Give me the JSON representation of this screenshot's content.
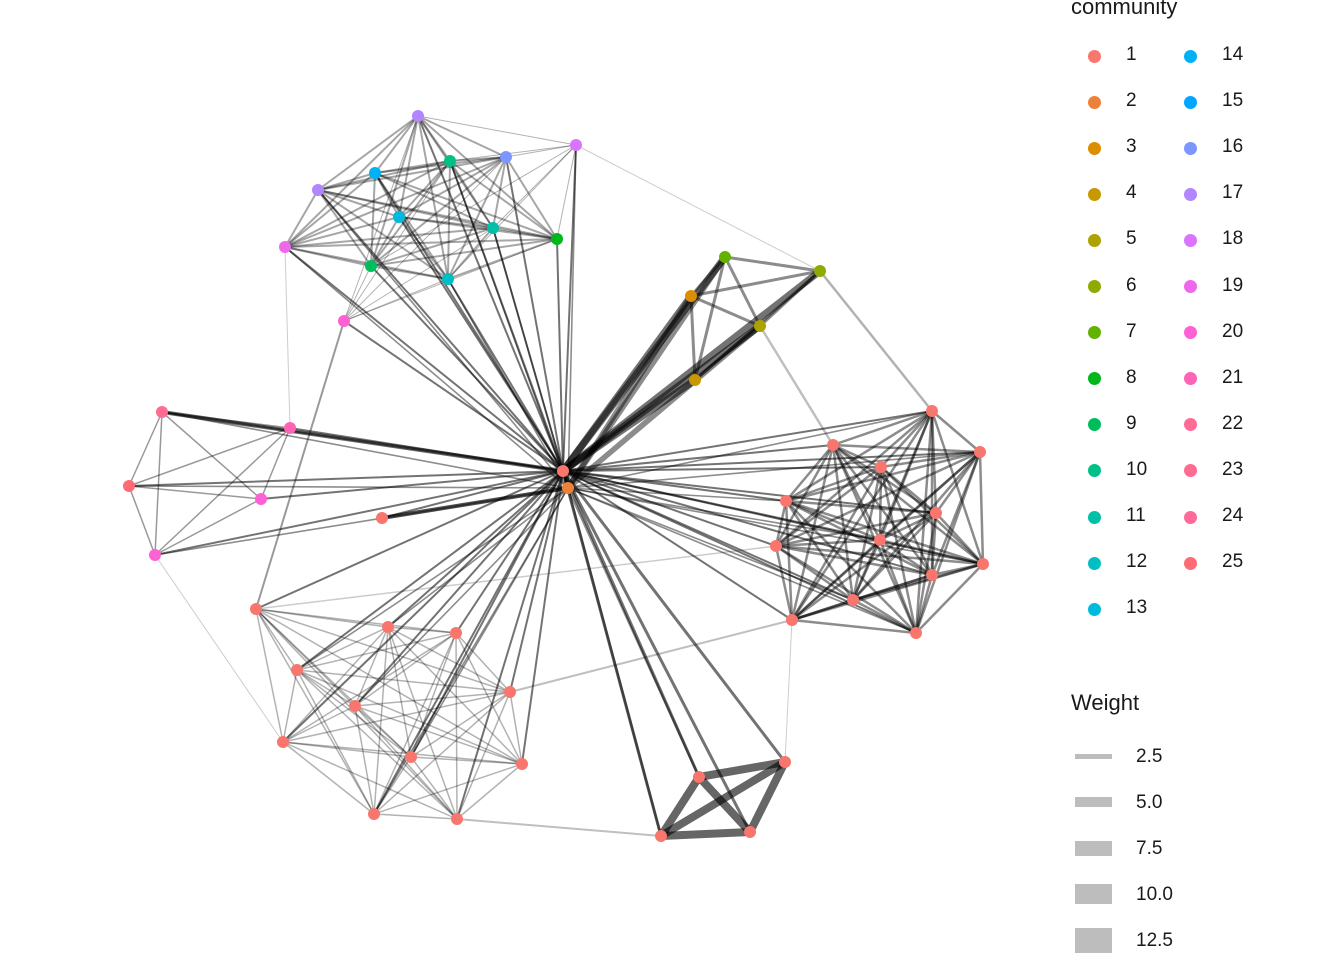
{
  "legend": {
    "community_title": "community",
    "weight_title": "Weight",
    "communities": [
      {
        "label": "1",
        "color": "#F8766D"
      },
      {
        "label": "2",
        "color": "#EC8239"
      },
      {
        "label": "3",
        "color": "#DB8E00"
      },
      {
        "label": "4",
        "color": "#C79800"
      },
      {
        "label": "5",
        "color": "#AEA200"
      },
      {
        "label": "6",
        "color": "#8FAA00"
      },
      {
        "label": "7",
        "color": "#64B200"
      },
      {
        "label": "8",
        "color": "#00B81B"
      },
      {
        "label": "9",
        "color": "#00BD5C"
      },
      {
        "label": "10",
        "color": "#00C085"
      },
      {
        "label": "11",
        "color": "#00C1A7"
      },
      {
        "label": "12",
        "color": "#00BFC4"
      },
      {
        "label": "13",
        "color": "#00BADE"
      },
      {
        "label": "14",
        "color": "#00B2F3"
      },
      {
        "label": "15",
        "color": "#00A6FF"
      },
      {
        "label": "16",
        "color": "#7C96FF"
      },
      {
        "label": "17",
        "color": "#B385FF"
      },
      {
        "label": "18",
        "color": "#D874FD"
      },
      {
        "label": "19",
        "color": "#EF67EB"
      },
      {
        "label": "20",
        "color": "#FD61D3"
      },
      {
        "label": "21",
        "color": "#FF63B6"
      },
      {
        "label": "22",
        "color": "#FF6B94"
      },
      {
        "label": "23",
        "color": "#FF6C91"
      },
      {
        "label": "24",
        "color": "#FF6A98"
      },
      {
        "label": "25",
        "color": "#FF6A77"
      }
    ],
    "weights": [
      {
        "label": "2.5",
        "value": 2.5
      },
      {
        "label": "5.0",
        "value": 5.0
      },
      {
        "label": "7.5",
        "value": 7.5
      },
      {
        "label": "10.0",
        "value": 10.0
      },
      {
        "label": "12.5",
        "value": 12.5
      }
    ]
  },
  "colors": {
    "edge": "#000000",
    "legend_key": "#bdbdbd"
  }
}
